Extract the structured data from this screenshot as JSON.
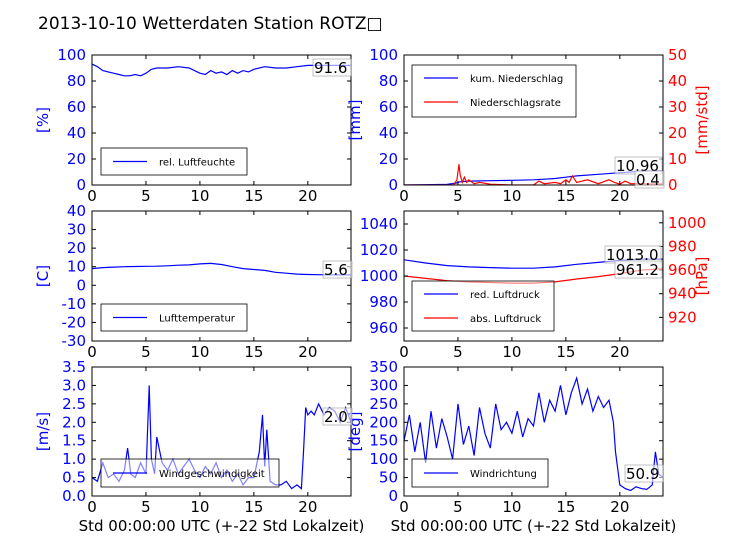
{
  "title": "2013-10-10 Wetterdaten Station ROTZ□",
  "colors": {
    "primary": "#0000ff",
    "secondary": "#ff0000",
    "axis": "#000000",
    "background": "#ffffff"
  },
  "chart_data": [
    {
      "type": "line",
      "ylabel": "[%]",
      "xlim": [
        0,
        24
      ],
      "ylim": [
        0,
        100
      ],
      "x_ticks": [
        0,
        5,
        10,
        15,
        20
      ],
      "y_ticks": [
        0,
        20,
        40,
        60,
        80,
        100
      ],
      "legend": "lower-left",
      "annotation": "91.6",
      "series": [
        {
          "name": "rel. Luftfeuchte",
          "color": "#0000ff",
          "x": [
            0,
            0.5,
            1,
            1.5,
            2,
            2.5,
            3,
            3.5,
            4,
            4.5,
            5,
            5.5,
            6,
            7,
            8,
            9,
            10,
            10.5,
            11,
            11.5,
            12,
            12.5,
            13,
            13.5,
            14,
            14.5,
            15,
            16,
            17,
            18,
            19,
            20,
            21,
            22,
            23,
            24
          ],
          "y": [
            93,
            91,
            88,
            87,
            86,
            85,
            84,
            84,
            85,
            84,
            86,
            89,
            90,
            90,
            91,
            90,
            86,
            85,
            88,
            86,
            87,
            85,
            88,
            86,
            88,
            87,
            89,
            91,
            90,
            90,
            91,
            92,
            92,
            92,
            92,
            92
          ]
        }
      ]
    },
    {
      "type": "line",
      "ylabel": "[mm]",
      "y2label": "[mm/std]",
      "xlim": [
        0,
        24
      ],
      "ylim": [
        0,
        100
      ],
      "y2lim": [
        0,
        50
      ],
      "x_ticks": [
        0,
        5,
        10,
        15,
        20
      ],
      "y_ticks": [
        0,
        20,
        40,
        60,
        80,
        100
      ],
      "y2_ticks": [
        0,
        10,
        20,
        30,
        40,
        50
      ],
      "legend": "top-left",
      "annotations": [
        "10.96",
        "0.4"
      ],
      "series": [
        {
          "name": "kum. Niederschlag",
          "color": "#0000ff",
          "axis": "left",
          "x": [
            0,
            2,
            4,
            4.8,
            5.2,
            6,
            8,
            10,
            12,
            13,
            14,
            15,
            16,
            18,
            20,
            22,
            24
          ],
          "y": [
            0,
            0.2,
            0.5,
            1.5,
            2.5,
            3,
            3.3,
            3.6,
            4,
            4.5,
            5,
            6,
            7,
            8.2,
            9.5,
            10.5,
            11
          ]
        },
        {
          "name": "Niederschlagsrate",
          "color": "#ff0000",
          "axis": "right",
          "x": [
            0,
            4.6,
            4.9,
            5.1,
            5.2,
            5.4,
            5.6,
            5.8,
            6,
            6.5,
            7,
            8,
            10,
            12,
            12.5,
            13,
            14,
            14.5,
            15,
            15.3,
            15.6,
            16,
            17,
            18,
            19,
            19.5,
            20,
            20.5,
            21,
            22,
            23,
            24
          ],
          "y": [
            0,
            0,
            2,
            8,
            4,
            1,
            3,
            1,
            2,
            0.5,
            1,
            0.3,
            0,
            0,
            1.5,
            0.5,
            1,
            0.5,
            2,
            1,
            3.5,
            1,
            2,
            0.5,
            2,
            1,
            0.3,
            1.5,
            0.5,
            0.5,
            0.4,
            0.4
          ]
        }
      ]
    },
    {
      "type": "line",
      "ylabel": "[C]",
      "xlim": [
        0,
        24
      ],
      "ylim": [
        -30,
        40
      ],
      "x_ticks": [
        0,
        5,
        10,
        15,
        20
      ],
      "y_ticks": [
        -30,
        -20,
        -10,
        0,
        10,
        20,
        30,
        40
      ],
      "legend": "lower-left",
      "annotation": "5.6",
      "series": [
        {
          "name": "Lufttemperatur",
          "color": "#0000ff",
          "x": [
            0,
            1,
            2,
            3,
            4,
            5,
            6,
            7,
            8,
            9,
            10,
            11,
            12,
            13,
            14,
            15,
            16,
            17,
            18,
            19,
            20,
            21,
            22,
            23,
            24
          ],
          "y": [
            9,
            9.5,
            9.8,
            10,
            10.1,
            10.2,
            10.3,
            10.5,
            10.8,
            11,
            11.5,
            11.8,
            11.2,
            10,
            9,
            8.5,
            8,
            7,
            6.5,
            6,
            5.8,
            5.7,
            5.6,
            5.6,
            5.6
          ]
        }
      ]
    },
    {
      "type": "line",
      "ylabel": "",
      "y2label": "[hPa]",
      "xlim": [
        0,
        24
      ],
      "ylim": [
        950,
        1050
      ],
      "y2lim": [
        900,
        1010
      ],
      "x_ticks": [
        0,
        5,
        10,
        15,
        20
      ],
      "y_ticks": [
        960,
        980,
        1000,
        1020,
        1040
      ],
      "y2_ticks": [
        920,
        940,
        960,
        980,
        1000
      ],
      "legend": "lower-left",
      "annotations": [
        "1013.0",
        "961.2"
      ],
      "series": [
        {
          "name": "red. Luftdruck",
          "color": "#0000ff",
          "axis": "left",
          "x": [
            0,
            2,
            4,
            6,
            8,
            10,
            12,
            14,
            16,
            18,
            20,
            22,
            24
          ],
          "y": [
            1012.5,
            1010,
            1008,
            1007,
            1006.5,
            1006,
            1006,
            1007,
            1009,
            1010.5,
            1012,
            1013,
            1013
          ]
        },
        {
          "name": "abs. Luftdruck",
          "color": "#ff0000",
          "axis": "right",
          "x": [
            0,
            2,
            4,
            6,
            8,
            10,
            12,
            14,
            16,
            18,
            20,
            22,
            24
          ],
          "y": [
            955,
            953,
            951,
            950,
            949.5,
            949,
            949,
            950,
            952.5,
            954.5,
            957,
            960,
            961.2
          ]
        }
      ]
    },
    {
      "type": "line",
      "ylabel": "[m/s]",
      "xlabel": "Std 00:00:00 UTC (+-22 Std Lokalzeit)",
      "xlim": [
        0,
        24
      ],
      "ylim": [
        0,
        3.5
      ],
      "x_ticks": [
        0,
        5,
        10,
        15,
        20
      ],
      "y_ticks": [
        0.0,
        0.5,
        1.0,
        1.5,
        2.0,
        2.5,
        3.0,
        3.5
      ],
      "legend": "lower-left",
      "annotation": "2.0",
      "series": [
        {
          "name": "Windgeschwindigkeit",
          "color": "#0000ff",
          "x": [
            0,
            0.5,
            1,
            1.5,
            2,
            2.5,
            3,
            3.3,
            3.6,
            4,
            4.5,
            5,
            5.3,
            5.5,
            5.8,
            6,
            6.5,
            7,
            7.5,
            8,
            8.5,
            9,
            9.5,
            10,
            10.5,
            11,
            11.5,
            12,
            12.5,
            13,
            13.5,
            14,
            14.5,
            15,
            15.5,
            15.8,
            16,
            16.2,
            16.5,
            17,
            17.5,
            18,
            18.5,
            19,
            19.4,
            19.6,
            19.8,
            20,
            20.3,
            20.6,
            21,
            21.5,
            22,
            22.5,
            23,
            23.5,
            24
          ],
          "y": [
            0.5,
            0.4,
            0.9,
            0.5,
            0.6,
            0.4,
            0.7,
            1.3,
            0.6,
            0.5,
            0.9,
            0.6,
            3.0,
            1.0,
            0.6,
            1.6,
            0.9,
            0.7,
            1.0,
            0.6,
            0.8,
            1.0,
            0.7,
            0.5,
            0.8,
            0.6,
            0.9,
            0.5,
            0.7,
            0.4,
            0.6,
            0.3,
            0.5,
            0.5,
            1.2,
            2.2,
            0.8,
            1.8,
            0.4,
            0.3,
            0.3,
            0.4,
            0.2,
            0.3,
            0.2,
            1.2,
            2.4,
            2.2,
            2.3,
            2.2,
            2.5,
            2.2,
            2.4,
            2.3,
            2.0,
            2.4,
            2.0
          ]
        }
      ]
    },
    {
      "type": "line",
      "ylabel": "[deg]",
      "xlabel": "Std 00:00:00 UTC (+-22 Std Lokalzeit)",
      "xlim": [
        0,
        24
      ],
      "ylim": [
        0,
        350
      ],
      "x_ticks": [
        0,
        5,
        10,
        15,
        20
      ],
      "y_ticks": [
        0,
        50,
        100,
        150,
        200,
        250,
        300,
        350
      ],
      "legend": "lower-left",
      "annotation": "50.9",
      "series": [
        {
          "name": "Windrichtung",
          "color": "#0000ff",
          "x": [
            0,
            0.5,
            1,
            1.5,
            2,
            2.5,
            3,
            3.5,
            4,
            4.5,
            5,
            5.5,
            6,
            6.5,
            7,
            7.5,
            8,
            8.5,
            9,
            9.5,
            10,
            10.5,
            11,
            11.5,
            12,
            12.5,
            13,
            13.5,
            14,
            14.5,
            15,
            15.5,
            16,
            16.5,
            17,
            17.5,
            18,
            18.5,
            19,
            19.4,
            19.6,
            20,
            20.5,
            21,
            21.5,
            22,
            22.5,
            23,
            23.3,
            23.6,
            24
          ],
          "y": [
            150,
            220,
            120,
            200,
            90,
            230,
            130,
            210,
            160,
            100,
            250,
            140,
            190,
            110,
            240,
            170,
            130,
            250,
            180,
            200,
            170,
            230,
            160,
            210,
            190,
            280,
            200,
            260,
            230,
            300,
            220,
            280,
            320,
            250,
            290,
            230,
            270,
            240,
            260,
            200,
            120,
            30,
            20,
            15,
            25,
            20,
            18,
            30,
            120,
            60,
            50
          ]
        }
      ]
    }
  ]
}
